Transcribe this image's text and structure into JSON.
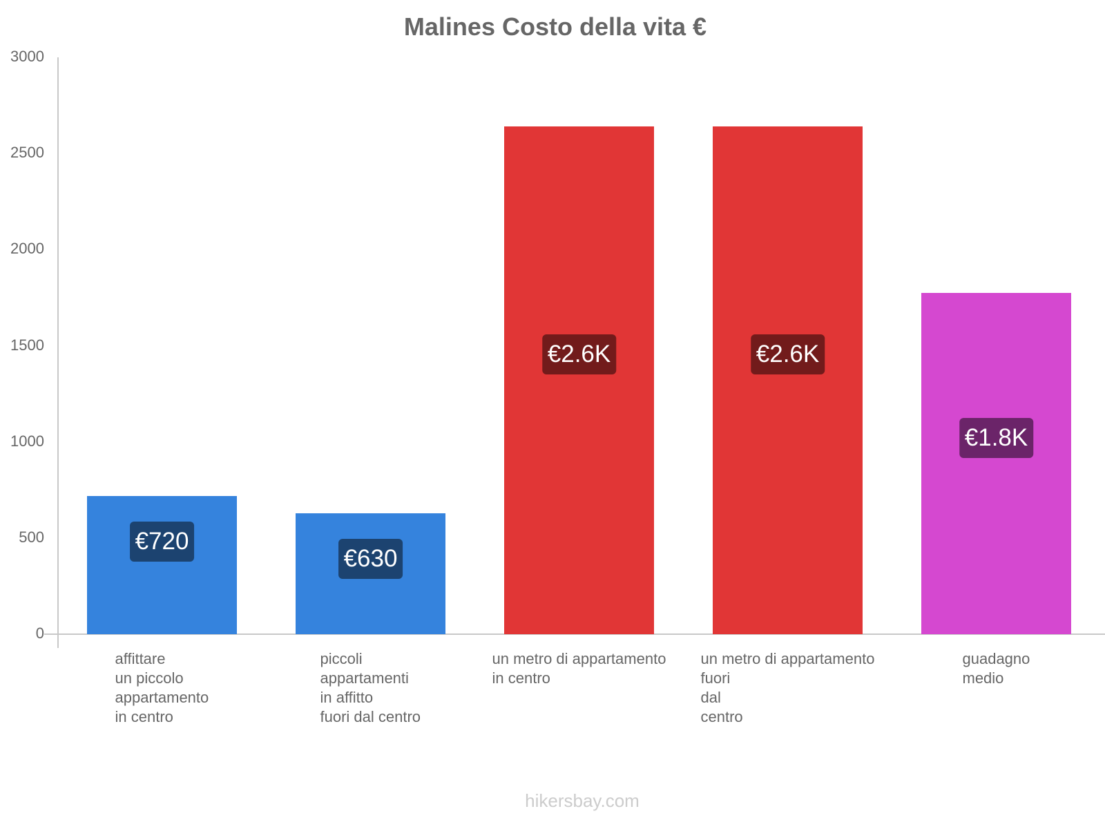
{
  "chart_data": {
    "type": "bar",
    "title": "Malines Costo della vita €",
    "xlabel": "",
    "ylabel": "",
    "ylim": [
      0,
      3000
    ],
    "yticks": [
      0,
      500,
      1000,
      1500,
      2000,
      2500,
      3000
    ],
    "grid": false,
    "legend": null,
    "categories": [
      "affittare un piccolo appartamento in centro",
      "piccoli appartamenti in affitto fuori dal centro",
      "un metro di appartamento in centro",
      "un metro di appartamento fuori dal centro",
      "guadagno medio"
    ],
    "values": [
      720,
      630,
      2640,
      2640,
      1775
    ],
    "data_labels": [
      "€720",
      "€630",
      "€2.6K",
      "€2.6K",
      "€1.8K"
    ],
    "colors": [
      "#3583dd",
      "#3583dd",
      "#e13636",
      "#e13636",
      "#d548d0"
    ],
    "label_colors": [
      "#1c4370",
      "#1c4370",
      "#721b1b",
      "#721b1b",
      "#6b2469"
    ]
  },
  "x_labels": [
    "affittare\nun piccolo\nappartamento\nin centro",
    "piccoli\nappartamenti\nin affitto\nfuori dal centro",
    "un metro di appartamento\nin centro",
    "un metro di appartamento\nfuori\ndal\ncentro",
    "guadagno\nmedio"
  ],
  "watermark": "hikersbay.com"
}
